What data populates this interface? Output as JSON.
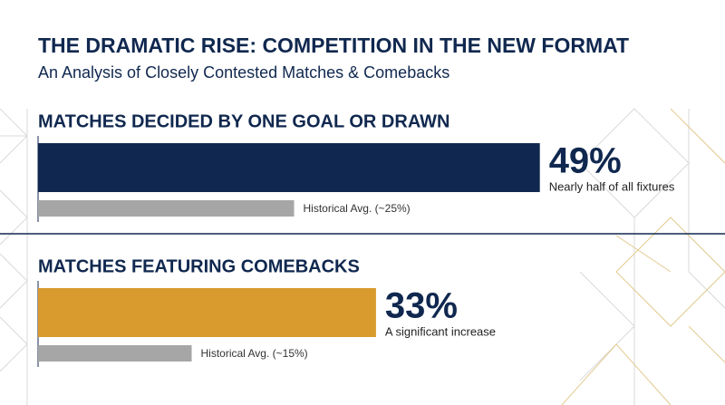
{
  "title": "THE DRAMATIC RISE: COMPETITION IN THE NEW FORMAT",
  "subtitle": "An Analysis of Closely Contested Matches & Comebacks",
  "sections": [
    {
      "heading": "MATCHES DECIDED BY ONE GOAL OR DRAWN",
      "value": 49,
      "value_label": "49%",
      "note": "Nearly half of all fixtures",
      "color": "#10284f",
      "baseline": {
        "value": 25,
        "label": "Historical Avg. (~25%)",
        "color": "#a6a6a6"
      }
    },
    {
      "heading": "MATCHES FEATURING COMEBACKS",
      "value": 33,
      "value_label": "33%",
      "note": "A significant increase",
      "color": "#d99a2e",
      "baseline": {
        "value": 15,
        "label": "Historical Avg. (~15%)",
        "color": "#a6a6a6"
      }
    }
  ]
}
